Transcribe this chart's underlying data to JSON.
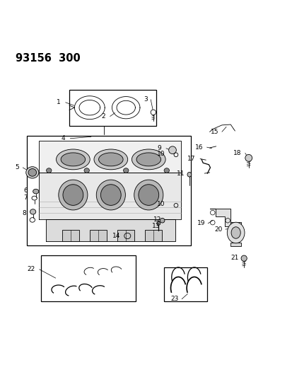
{
  "title": "93156  300",
  "bg_color": "#ffffff",
  "line_color": "#000000",
  "fig_width": 4.14,
  "fig_height": 5.33,
  "dpi": 100
}
